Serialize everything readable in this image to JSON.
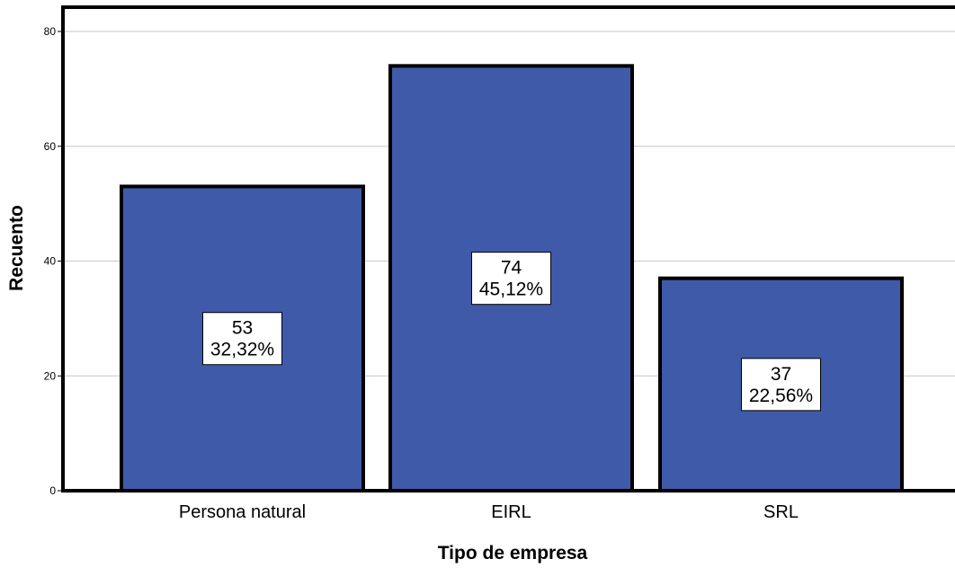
{
  "chart_data": {
    "type": "bar",
    "title": "",
    "xlabel": "Tipo de empresa",
    "ylabel": "Recuento",
    "categories": [
      "Persona natural",
      "EIRL",
      "SRL"
    ],
    "values": [
      53,
      74,
      37
    ],
    "percent_labels": [
      "32,32%",
      "45,12%",
      "22,56%"
    ],
    "yticks": [
      0,
      20,
      40,
      60,
      80
    ],
    "ylim": [
      0,
      84.5
    ],
    "grid": true,
    "legend": "none",
    "bar_color": "#3f5aa8",
    "bar_border_color": "#000000",
    "gridline_color": "#d0d0d0"
  }
}
